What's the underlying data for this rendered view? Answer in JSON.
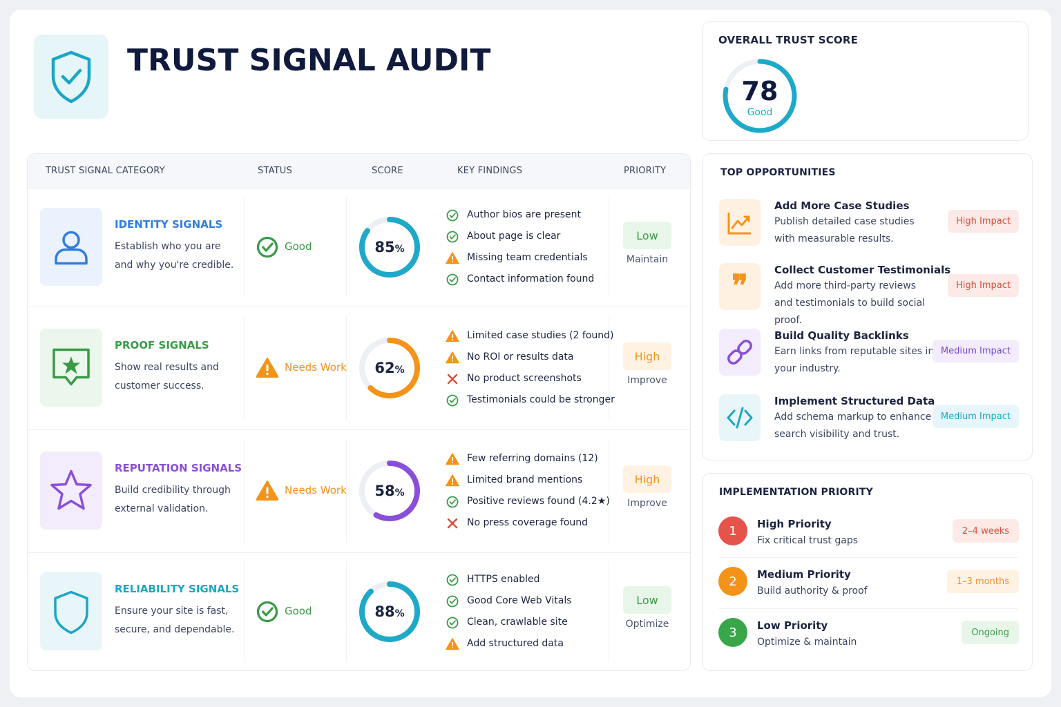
{
  "header": {
    "title": "TRUST SIGNAL AUDIT"
  },
  "gauge_lim": [
    0,
    100
  ],
  "table": {
    "columns": [
      "TRUST SIGNAL CATEGORY",
      "STATUS",
      "SCORE",
      "KEY FINDINGS",
      "PRIORITY"
    ],
    "rows": [
      {
        "title": "IDENTITY SIGNALS",
        "description": "Establish who you are and why you're credible.",
        "icon": "user",
        "color": "#2f7de1",
        "icon_bg": "#eaf2fd",
        "status": "Good",
        "status_icon": "check",
        "status_color": "#3a9a47",
        "score": 85,
        "score_unit": "%",
        "ring_color": "#1fa9c9",
        "findings": [
          {
            "icon": "check",
            "text": "Author bios are present"
          },
          {
            "icon": "check",
            "text": "About page is clear"
          },
          {
            "icon": "warn",
            "text": "Missing team credentials"
          },
          {
            "icon": "check",
            "text": "Contact information found"
          }
        ],
        "priority": "Low",
        "priority_color": "#3a9a47",
        "priority_bg": "#e8f6ea",
        "action": "Maintain"
      },
      {
        "title": "PROOF SIGNALS",
        "description": "Show real results and customer success.",
        "icon": "badge",
        "color": "#3a9a47",
        "icon_bg": "#ebf6ec",
        "status": "Needs Work",
        "status_icon": "warn",
        "status_color": "#f39419",
        "score": 62,
        "score_unit": "%",
        "ring_color": "#f39419",
        "findings": [
          {
            "icon": "warn",
            "text": "Limited case studies (2 found)"
          },
          {
            "icon": "warn",
            "text": "No ROI or results data"
          },
          {
            "icon": "cross",
            "text": "No product screenshots"
          },
          {
            "icon": "check",
            "text": "Testimonials could be stronger"
          }
        ],
        "priority": "High",
        "priority_color": "#f39419",
        "priority_bg": "#fff2e2",
        "action": "Improve"
      },
      {
        "title": "REPUTATION SIGNALS",
        "description": "Build credibility through external validation.",
        "icon": "star",
        "color": "#8a4fd8",
        "icon_bg": "#f2ecfc",
        "status": "Needs Work",
        "status_icon": "warn",
        "status_color": "#f39419",
        "score": 58,
        "score_unit": "%",
        "ring_color": "#8a4fd8",
        "findings": [
          {
            "icon": "warn",
            "text": "Few referring domains (12)"
          },
          {
            "icon": "warn",
            "text": "Limited brand mentions"
          },
          {
            "icon": "check",
            "text": "Positive reviews found (4.2★)"
          },
          {
            "icon": "cross",
            "text": "No press coverage found"
          }
        ],
        "priority": "High",
        "priority_color": "#f39419",
        "priority_bg": "#fff2e2",
        "action": "Improve"
      },
      {
        "title": "RELIABILITY SIGNALS",
        "description": "Ensure your site is fast, secure, and dependable.",
        "icon": "shield",
        "color": "#1aa6c4",
        "icon_bg": "#e8f6f9",
        "status": "Good",
        "status_icon": "check",
        "status_color": "#3a9a47",
        "score": 88,
        "score_unit": "%",
        "ring_color": "#1fa9c9",
        "findings": [
          {
            "icon": "check",
            "text": "HTTPS enabled"
          },
          {
            "icon": "check",
            "text": "Good Core Web Vitals"
          },
          {
            "icon": "check",
            "text": "Clean, crawlable site"
          },
          {
            "icon": "warn",
            "text": "Add structured data"
          }
        ],
        "priority": "Low",
        "priority_color": "#3a9a47",
        "priority_bg": "#e8f6ea",
        "action": "Optimize"
      }
    ]
  },
  "overall": {
    "title": "OVERALL TRUST SCORE",
    "score": 78,
    "label": "Good",
    "color": "#1fa9c9"
  },
  "opportunities": {
    "title": "TOP OPPORTUNITIES",
    "items": [
      {
        "title": "Add More Case Studies",
        "description": "Publish detailed case studies with measurable results.",
        "icon": "chart",
        "color": "#f39419",
        "icon_bg": "#fff1e2",
        "impact": "High Impact",
        "impact_color": "#e04a3a",
        "impact_bg": "#fdeae7"
      },
      {
        "title": "Collect Customer Testimonials",
        "description": "Add more third-party reviews and testimonials to build social proof.",
        "icon": "quote",
        "color": "#f39419",
        "icon_bg": "#fff1e2",
        "impact": "High Impact",
        "impact_color": "#e04a3a",
        "impact_bg": "#fdeae7"
      },
      {
        "title": "Build Quality Backlinks",
        "description": "Earn links from reputable sites in your industry.",
        "icon": "link",
        "color": "#8a4fd8",
        "icon_bg": "#f2ecfc",
        "impact": "Medium Impact",
        "impact_color": "#7b45d0",
        "impact_bg": "#f2ecfc"
      },
      {
        "title": "Implement Structured Data",
        "description": "Add schema markup to enhance search visibility and trust.",
        "icon": "code",
        "color": "#1aa6c4",
        "icon_bg": "#e8f6f9",
        "impact": "Medium Impact",
        "impact_color": "#1aa6c4",
        "impact_bg": "#e6f6fa"
      }
    ]
  },
  "implementation": {
    "title": "IMPLEMENTATION PRIORITY",
    "items": [
      {
        "number": 1,
        "title": "High Priority",
        "description": "Fix critical trust gaps",
        "timeline": "2–4 weeks",
        "color": "#e5534b",
        "timeline_color": "#e04a3a",
        "timeline_bg": "#fdeae7"
      },
      {
        "number": 2,
        "title": "Medium Priority",
        "description": "Build authority & proof",
        "timeline": "1–3 months",
        "color": "#f39419",
        "timeline_color": "#f39419",
        "timeline_bg": "#fff2e2"
      },
      {
        "number": 3,
        "title": "Low Priority",
        "description": "Optimize & maintain",
        "timeline": "Ongoing",
        "color": "#3aa64a",
        "timeline_color": "#3a9a47",
        "timeline_bg": "#e8f6ea"
      }
    ]
  }
}
